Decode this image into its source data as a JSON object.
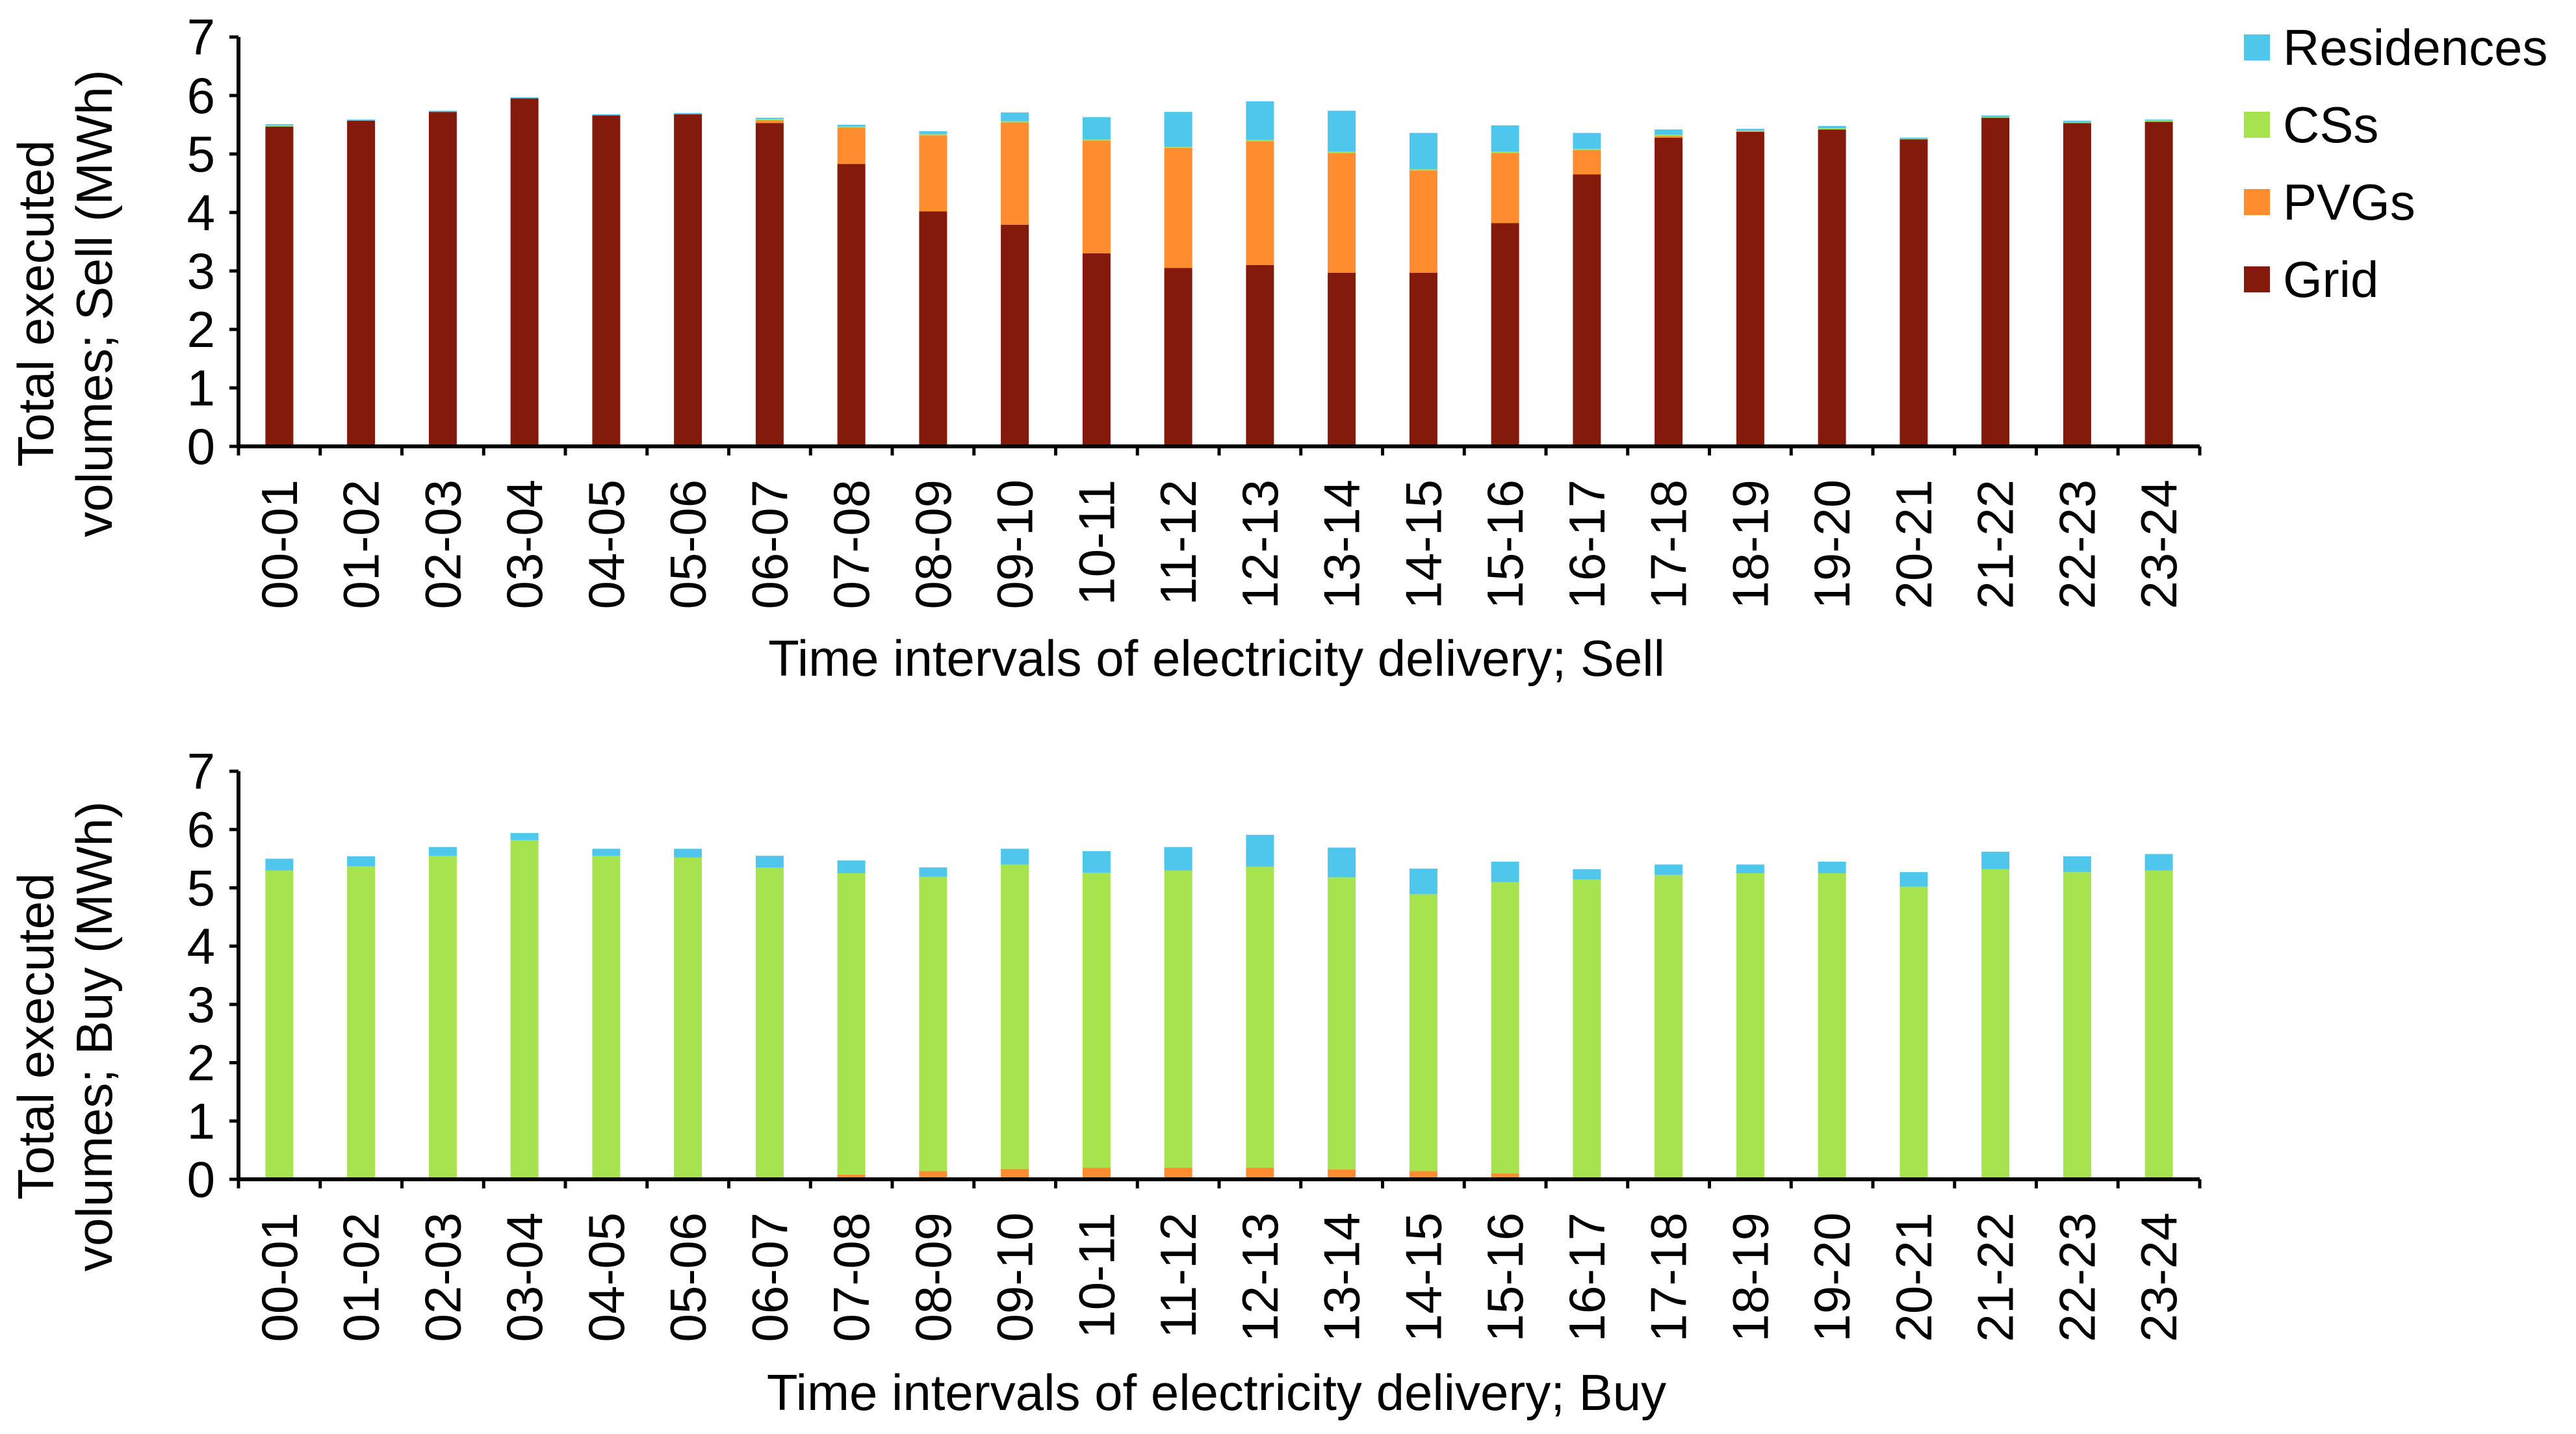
{
  "colors": {
    "Residences": "#4FC7ED",
    "CSs": "#A6E34E",
    "PVGs": "#FF8C2E",
    "Grid": "#841A0C"
  },
  "legend": [
    {
      "key": "Residences",
      "label": "Residences"
    },
    {
      "key": "CSs",
      "label": "CSs"
    },
    {
      "key": "PVGs",
      "label": "PVGs"
    },
    {
      "key": "Grid",
      "label": "Grid"
    }
  ],
  "chart_data": [
    {
      "type": "bar",
      "stacked": true,
      "title": "",
      "xlabel": "Time intervals of electricity delivery; Sell",
      "ylabel_lines": [
        "Total executed",
        "volumes; Sell (MWh)"
      ],
      "ylim": [
        0,
        7
      ],
      "yticks": [
        "0",
        "1",
        "2",
        "3",
        "4",
        "5",
        "6",
        "7"
      ],
      "grid": false,
      "categories": [
        "00-01",
        "01-02",
        "02-03",
        "03-04",
        "04-05",
        "05-06",
        "06-07",
        "07-08",
        "08-09",
        "09-10",
        "10-11",
        "11-12",
        "12-13",
        "13-14",
        "14-15",
        "15-16",
        "16-17",
        "17-18",
        "18-19",
        "19-20",
        "20-21",
        "21-22",
        "22-23",
        "23-24"
      ],
      "series": [
        {
          "name": "Grid",
          "values": [
            5.47,
            5.57,
            5.72,
            5.95,
            5.66,
            5.68,
            5.53,
            4.83,
            4.02,
            3.79,
            3.3,
            3.05,
            3.1,
            2.97,
            2.97,
            3.82,
            4.65,
            5.28,
            5.38,
            5.42,
            5.25,
            5.62,
            5.53,
            5.55
          ]
        },
        {
          "name": "PVGs",
          "values": [
            0,
            0,
            0,
            0,
            0,
            0,
            0.05,
            0.62,
            1.3,
            1.75,
            1.93,
            2.05,
            2.12,
            2.05,
            1.75,
            1.2,
            0.42,
            0.03,
            0.01,
            0,
            0,
            0,
            0,
            0
          ]
        },
        {
          "name": "CSs",
          "values": [
            0.02,
            0,
            0,
            0,
            0,
            0,
            0.02,
            0.02,
            0.02,
            0.02,
            0.02,
            0.02,
            0.02,
            0.02,
            0.02,
            0.02,
            0.02,
            0.02,
            0.01,
            0.02,
            0.01,
            0.01,
            0.01,
            0.02
          ]
        },
        {
          "name": "Residences",
          "values": [
            0.02,
            0.02,
            0.02,
            0.02,
            0.02,
            0.02,
            0.02,
            0.03,
            0.05,
            0.15,
            0.38,
            0.6,
            0.66,
            0.7,
            0.62,
            0.45,
            0.27,
            0.09,
            0.03,
            0.04,
            0.02,
            0.03,
            0.03,
            0.02
          ]
        }
      ]
    },
    {
      "type": "bar",
      "stacked": true,
      "title": "",
      "xlabel": "Time intervals of electricity delivery; Buy",
      "ylabel_lines": [
        "Total executed",
        "volumes; Buy (MWh)"
      ],
      "ylim": [
        0,
        7
      ],
      "yticks": [
        "0",
        "1",
        "2",
        "3",
        "4",
        "5",
        "6",
        "7"
      ],
      "grid": false,
      "categories": [
        "00-01",
        "01-02",
        "02-03",
        "03-04",
        "04-05",
        "05-06",
        "06-07",
        "07-08",
        "08-09",
        "09-10",
        "10-11",
        "11-12",
        "12-13",
        "13-14",
        "14-15",
        "15-16",
        "16-17",
        "17-18",
        "18-19",
        "19-20",
        "20-21",
        "21-22",
        "22-23",
        "23-24"
      ],
      "series": [
        {
          "name": "PVGs",
          "values": [
            0,
            0,
            0,
            0,
            0,
            0,
            0,
            0.08,
            0.14,
            0.18,
            0.2,
            0.2,
            0.2,
            0.17,
            0.14,
            0.1,
            0.02,
            0,
            0,
            0,
            0,
            0,
            0,
            0
          ]
        },
        {
          "name": "CSs",
          "values": [
            5.3,
            5.37,
            5.55,
            5.82,
            5.55,
            5.52,
            5.35,
            5.17,
            5.05,
            5.22,
            5.06,
            5.1,
            5.16,
            5.01,
            4.75,
            5.0,
            5.12,
            5.22,
            5.25,
            5.25,
            5.02,
            5.32,
            5.27,
            5.3
          ]
        },
        {
          "name": "Residences",
          "values": [
            0.2,
            0.17,
            0.15,
            0.12,
            0.12,
            0.15,
            0.2,
            0.22,
            0.16,
            0.27,
            0.37,
            0.4,
            0.55,
            0.51,
            0.44,
            0.35,
            0.18,
            0.18,
            0.15,
            0.2,
            0.25,
            0.3,
            0.27,
            0.28
          ]
        }
      ]
    }
  ]
}
